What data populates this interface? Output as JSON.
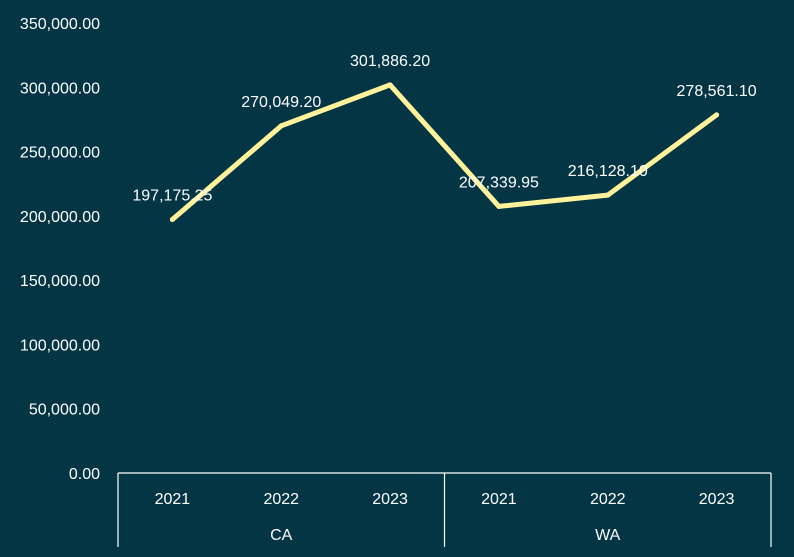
{
  "chart_data": {
    "type": "line",
    "title": "",
    "xlabel": "",
    "ylabel": "",
    "groups": [
      {
        "label": "CA",
        "years": [
          "2021",
          "2022",
          "2023"
        ]
      },
      {
        "label": "WA",
        "years": [
          "2021",
          "2022",
          "2023"
        ]
      }
    ],
    "series": [
      {
        "values": [
          197175.25,
          270049.2,
          301886.2,
          207339.95,
          216128.1,
          278561.1
        ],
        "labels": [
          "197,175.25",
          "270,049.20",
          "301,886.20",
          "207,339.95",
          "216,128.10",
          "278,561.10"
        ]
      }
    ],
    "ylim": [
      0,
      350000
    ],
    "yticks": [
      0,
      50000,
      100000,
      150000,
      200000,
      250000,
      300000,
      350000
    ],
    "ytick_labels": [
      "0.00",
      "50,000.00",
      "100,000.00",
      "150,000.00",
      "200,000.00",
      "250,000.00",
      "300,000.00",
      "350,000.00"
    ],
    "grid": false,
    "legend": "none",
    "colors": {
      "background": "#033545",
      "line": "#FFF29A",
      "text": "#FFFFFF",
      "axis": "#FFFFFF"
    }
  }
}
